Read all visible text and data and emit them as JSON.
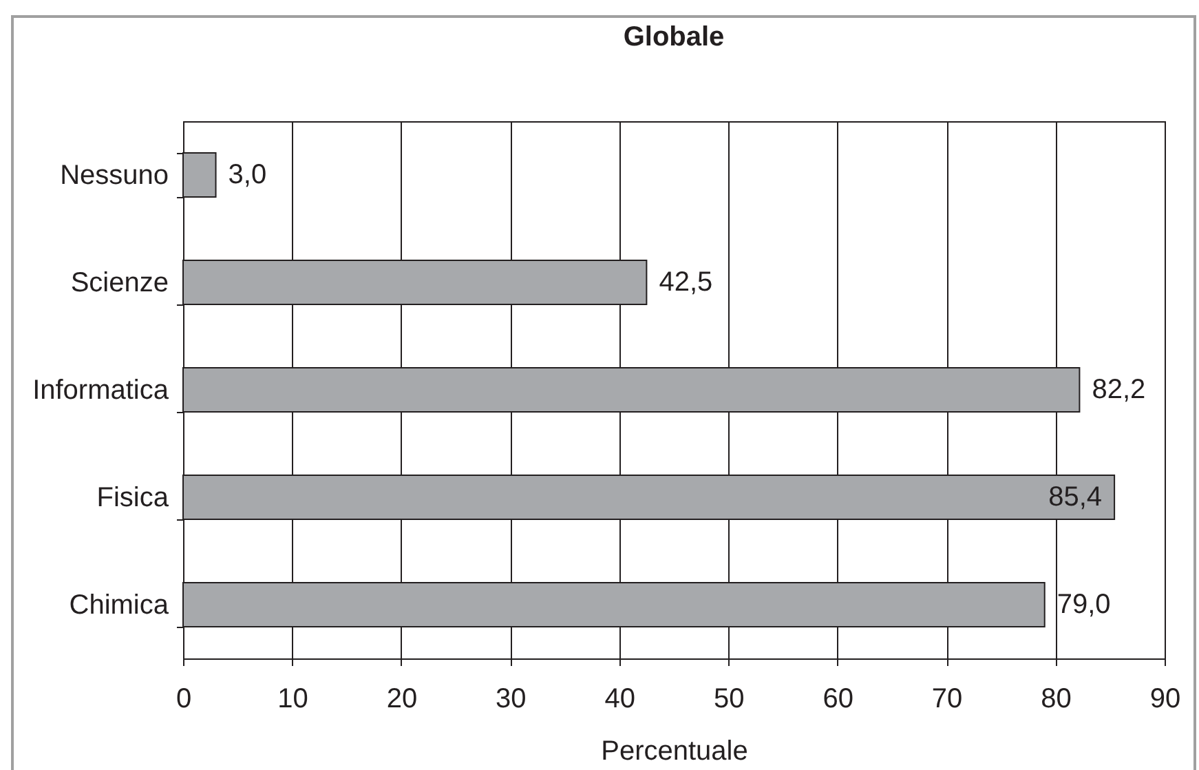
{
  "chart_data": {
    "type": "bar",
    "orientation": "horizontal",
    "title": "Globale",
    "xlabel": "Percentuale",
    "categories": [
      "Nessuno",
      "Scienze",
      "Informatica",
      "Fisica",
      "Chimica"
    ],
    "values": [
      3.0,
      42.5,
      82.2,
      85.4,
      79.0
    ],
    "value_labels": [
      "3,0",
      "42,5",
      "82,2",
      "85,4",
      "79,0"
    ],
    "color": "#a7a9ac",
    "xlim": [
      0,
      90
    ],
    "xticks": [
      0,
      10,
      20,
      30,
      40,
      50,
      60,
      70,
      80,
      90
    ],
    "grid": "x"
  }
}
